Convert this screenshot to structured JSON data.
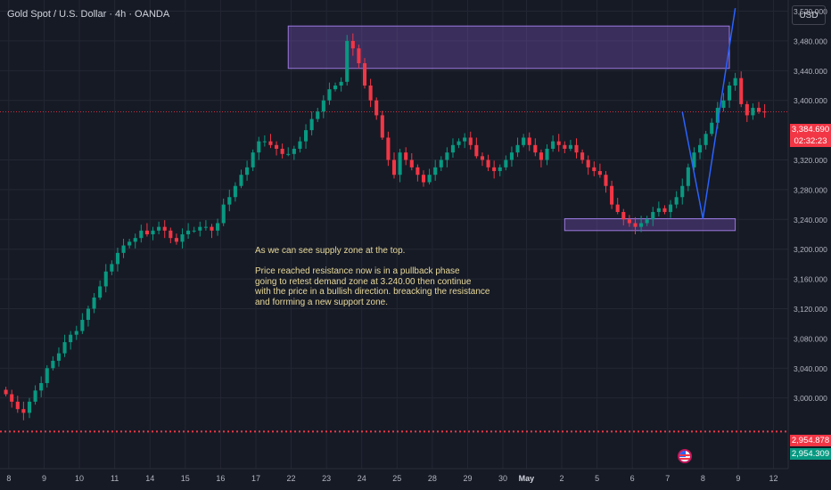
{
  "header": {
    "title": "Gold Spot / U.S. Dollar · 4h · OANDA",
    "currency": "USD"
  },
  "price_tags": {
    "current_price": "3,384.690",
    "countdown": "02:32:23",
    "red_level": "2,954.878",
    "green_level": "2,954.309"
  },
  "annotation": "As we can see supply zone at the top.\n\nPrice reached resistance now is in a pullback phase\ngoing to retest demand zone at 3.240.00 then continue\nwith the price in a bullish direction. breacking the resistance\nand forrming a new support zone.",
  "colors": {
    "background": "#161a25",
    "bull": "#089981",
    "bear": "#f23645",
    "zone": "#7e57c2",
    "projection": "#2962ff"
  },
  "chart_data": {
    "type": "candlestick",
    "symbol": "Gold Spot / U.S. Dollar",
    "interval": "4h",
    "ylim": [
      2905,
      3535
    ],
    "y_ticks": [
      {
        "value": 3520,
        "label": "3,520.000"
      },
      {
        "value": 3480,
        "label": "3,480.000"
      },
      {
        "value": 3440,
        "label": "3,440.000"
      },
      {
        "value": 3400,
        "label": "3,400.000"
      },
      {
        "value": 3320,
        "label": "3,320.000"
      },
      {
        "value": 3280,
        "label": "3,280.000"
      },
      {
        "value": 3240,
        "label": "3,240.000"
      },
      {
        "value": 3200,
        "label": "3,200.000"
      },
      {
        "value": 3160,
        "label": "3,160.000"
      },
      {
        "value": 3120,
        "label": "3,120.000"
      },
      {
        "value": 3080,
        "label": "3,080.000"
      },
      {
        "value": 3040,
        "label": "3,040.000"
      },
      {
        "value": 3000,
        "label": "3,000.000"
      }
    ],
    "x_ticks": [
      {
        "idx": 0.5,
        "label": "8"
      },
      {
        "idx": 6.5,
        "label": "9"
      },
      {
        "idx": 12.5,
        "label": "10"
      },
      {
        "idx": 18.5,
        "label": "11"
      },
      {
        "idx": 24.5,
        "label": "14"
      },
      {
        "idx": 30.5,
        "label": "15"
      },
      {
        "idx": 36.5,
        "label": "16"
      },
      {
        "idx": 42.5,
        "label": "17"
      },
      {
        "idx": 48.5,
        "label": "22"
      },
      {
        "idx": 54.5,
        "label": "23"
      },
      {
        "idx": 60.5,
        "label": "24"
      },
      {
        "idx": 66.5,
        "label": "25"
      },
      {
        "idx": 72.5,
        "label": "28"
      },
      {
        "idx": 78.5,
        "label": "29"
      },
      {
        "idx": 84.5,
        "label": "30"
      },
      {
        "idx": 88.5,
        "label": "May"
      },
      {
        "idx": 94.5,
        "label": "2"
      },
      {
        "idx": 100.5,
        "label": "5"
      },
      {
        "idx": 106.5,
        "label": "6"
      },
      {
        "idx": 112.5,
        "label": "7"
      },
      {
        "idx": 118.5,
        "label": "8"
      },
      {
        "idx": 124.5,
        "label": "9"
      },
      {
        "idx": 130.5,
        "label": "12"
      }
    ],
    "x_range": [
      -1,
      133
    ],
    "closes": [
      3005,
      2995,
      2985,
      2980,
      2995,
      3010,
      3020,
      3040,
      3050,
      3060,
      3075,
      3085,
      3090,
      3105,
      3120,
      3135,
      3150,
      3170,
      3180,
      3195,
      3205,
      3210,
      3215,
      3225,
      3220,
      3225,
      3230,
      3225,
      3215,
      3210,
      3220,
      3225,
      3225,
      3230,
      3230,
      3225,
      3235,
      3260,
      3270,
      3285,
      3300,
      3310,
      3330,
      3345,
      3345,
      3340,
      3335,
      3328,
      3328,
      3335,
      3345,
      3360,
      3375,
      3385,
      3400,
      3415,
      3420,
      3425,
      3480,
      3470,
      3450,
      3420,
      3400,
      3380,
      3350,
      3320,
      3300,
      3330,
      3320,
      3310,
      3300,
      3290,
      3300,
      3310,
      3320,
      3330,
      3340,
      3345,
      3350,
      3340,
      3325,
      3320,
      3310,
      3305,
      3310,
      3320,
      3330,
      3340,
      3350,
      3340,
      3330,
      3320,
      3335,
      3345,
      3340,
      3335,
      3340,
      3330,
      3320,
      3310,
      3305,
      3300,
      3285,
      3260,
      3250,
      3240,
      3235,
      3230,
      3235,
      3240,
      3250,
      3255,
      3250,
      3260,
      3270,
      3285,
      3310,
      3330,
      3340,
      3355,
      3370,
      3390,
      3400,
      3420,
      3430,
      3395,
      3380,
      3390,
      3385,
      3384.69
    ],
    "supply_zone": {
      "x_from": 48,
      "x_to": 123,
      "y_from": 3443,
      "y_to": 3500
    },
    "demand_zone": {
      "x_from": 95,
      "x_to": 124,
      "y_from": 3225,
      "y_to": 3241
    },
    "projection": [
      {
        "x": 115,
        "y": 3384.69
      },
      {
        "x": 118.5,
        "y": 3241
      },
      {
        "x": 124,
        "y": 3524
      }
    ],
    "current_price": 3384.69,
    "red_level": 2954.878,
    "green_level": 2954.309
  }
}
